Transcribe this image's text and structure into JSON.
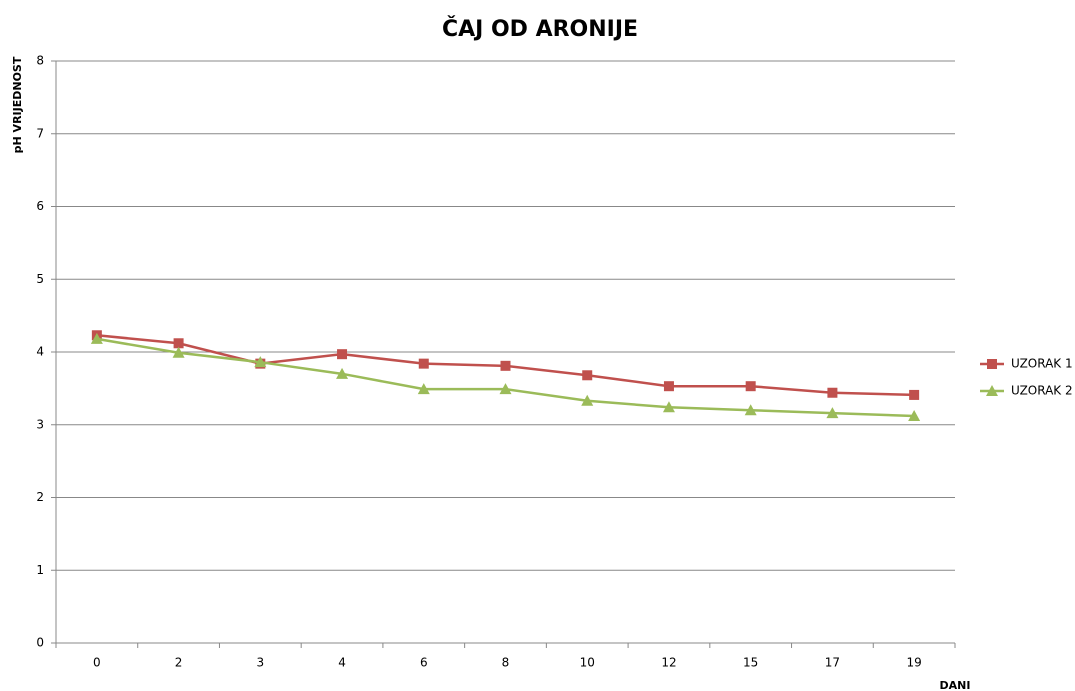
{
  "chart_data": {
    "type": "line",
    "title": "ČAJ OD ARONIJE",
    "y_label": "pH VRIJEDNOST",
    "x_label": "DANI",
    "categories": [
      "0",
      "2",
      "3",
      "4",
      "6",
      "8",
      "10",
      "12",
      "15",
      "17",
      "19"
    ],
    "series": [
      {
        "name": "UZORAK 1",
        "color": "#c0504d",
        "marker": "square",
        "values": [
          4.23,
          4.12,
          3.84,
          3.97,
          3.84,
          3.81,
          3.68,
          3.53,
          3.53,
          3.44,
          3.41
        ]
      },
      {
        "name": "UZORAK 2",
        "color": "#9bbb59",
        "marker": "triangle",
        "values": [
          4.18,
          3.99,
          3.86,
          3.7,
          3.49,
          3.49,
          3.33,
          3.24,
          3.2,
          3.16,
          3.12
        ]
      }
    ],
    "ylim": [
      0,
      8
    ],
    "yticks": [
      0,
      1,
      2,
      3,
      4,
      5,
      6,
      7,
      8
    ],
    "grid": true,
    "legend": "right"
  }
}
